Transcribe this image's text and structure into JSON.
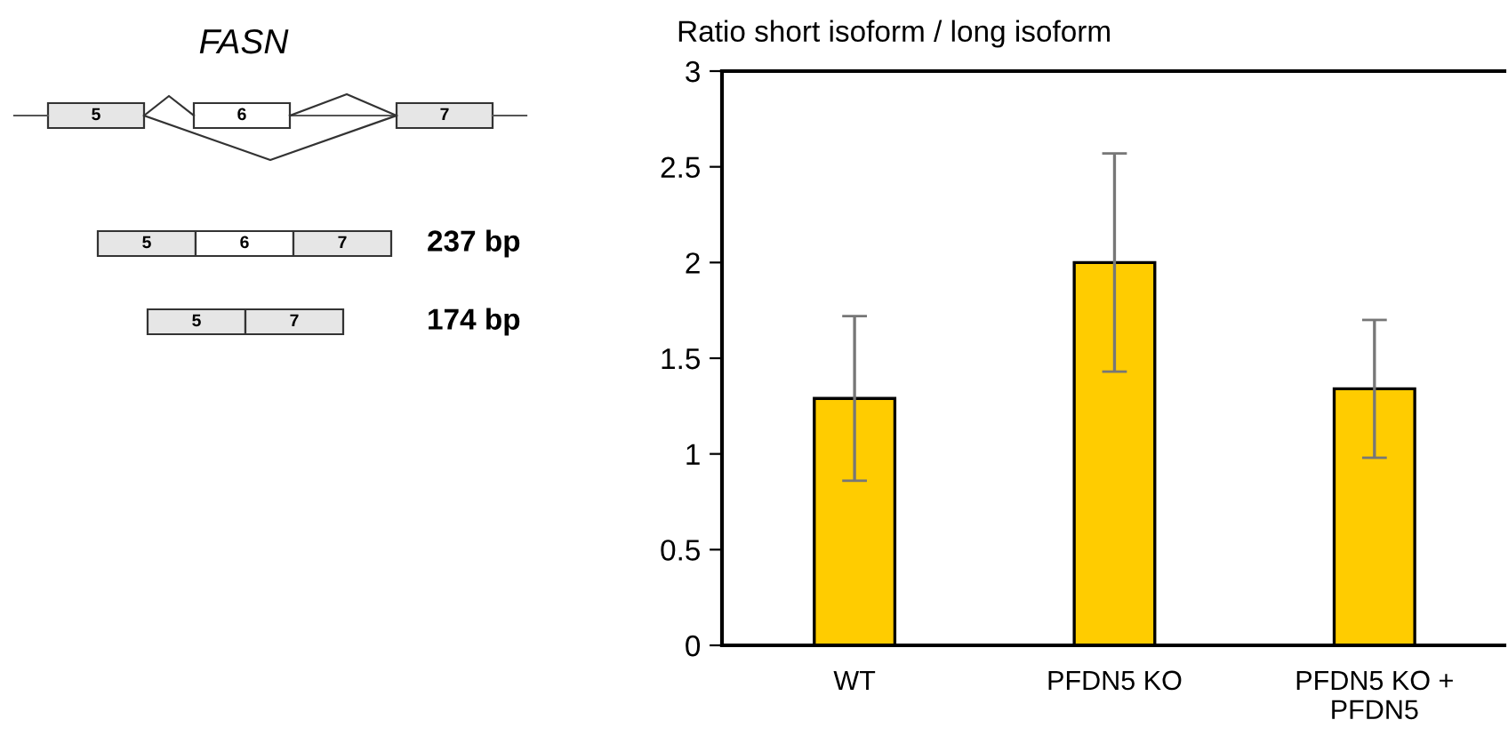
{
  "chart_data": [
    {
      "type": "other",
      "title": "FASN",
      "annotations": [
        "5",
        "6",
        "7",
        "5",
        "6",
        "7",
        "237 bp",
        "5",
        "7",
        "174 bp"
      ]
    },
    {
      "type": "bar",
      "title": "Ratio short isoform / long isoform",
      "categories": [
        "WT",
        "PFDN5 KO",
        "PFDN5 KO +\nPFDN5"
      ],
      "values": [
        1.29,
        2.0,
        1.34
      ],
      "errors": [
        0.43,
        0.57,
        0.36
      ],
      "color": "#ffcc00",
      "ylim": [
        0,
        3
      ],
      "yticks": [
        0,
        0.5,
        1,
        1.5,
        2,
        2.5,
        3
      ],
      "grid": false,
      "legend": false
    }
  ]
}
